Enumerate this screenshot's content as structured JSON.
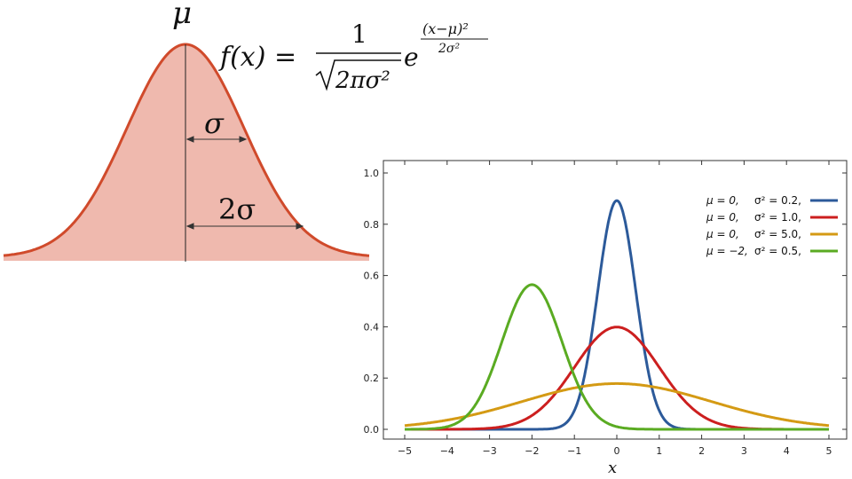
{
  "left_figure": {
    "mean_symbol": "μ",
    "sigma_label": "σ",
    "two_sigma_label": "2σ",
    "curve_color": "#d04a2b",
    "fill_color": "#efb9ae"
  },
  "formula": {
    "lhs": "f(x) =",
    "numerator": "1",
    "denominator": "2πσ²",
    "base": "e",
    "exp_numerator": "(x−μ)²",
    "exp_denominator": "2σ²"
  },
  "chart_data": {
    "type": "line",
    "title": "",
    "xlabel": "x",
    "ylabel": "",
    "xlim": [
      -5,
      5
    ],
    "ylim": [
      0,
      1.0
    ],
    "xticks": [
      "−5",
      "−4",
      "−3",
      "−2",
      "−1",
      "0",
      "1",
      "2",
      "3",
      "4",
      "5"
    ],
    "yticks": [
      "0.0",
      "0.2",
      "0.4",
      "0.6",
      "0.8",
      "1.0"
    ],
    "grid": false,
    "legend_position": "top-right",
    "series": [
      {
        "name_mu": "μ = 0,",
        "name_var": "σ² = 0.2,",
        "mu": 0,
        "variance": 0.2,
        "color": "#2c5a9a"
      },
      {
        "name_mu": "μ = 0,",
        "name_var": "σ² = 1.0,",
        "mu": 0,
        "variance": 1.0,
        "color": "#cc1f1f"
      },
      {
        "name_mu": "μ = 0,",
        "name_var": "σ² = 5.0,",
        "mu": 0,
        "variance": 5.0,
        "color": "#d49a14"
      },
      {
        "name_mu": "μ = −2,",
        "name_var": "σ² = 0.5,",
        "mu": -2,
        "variance": 0.5,
        "color": "#5aab22"
      }
    ]
  }
}
